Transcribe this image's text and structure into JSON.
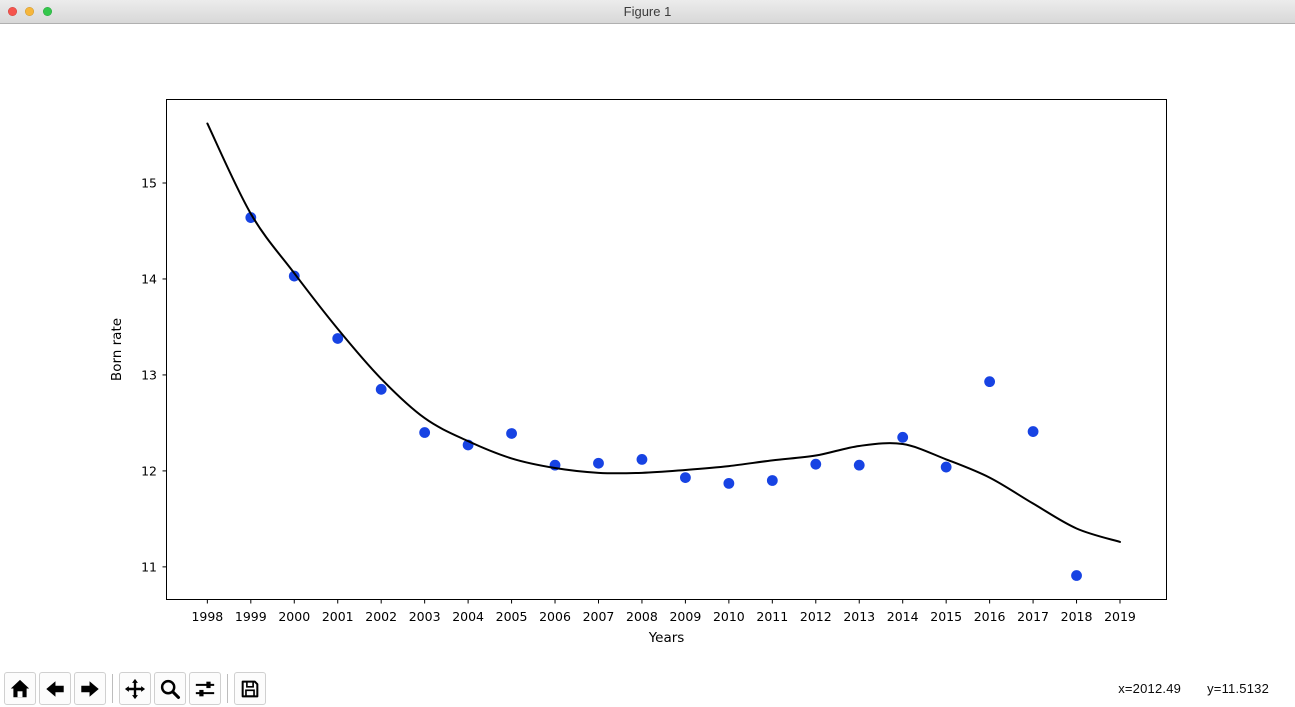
{
  "window": {
    "title": "Figure 1"
  },
  "titlebar": {
    "traffic_lights": [
      {
        "name": "close",
        "color": "#f5544d"
      },
      {
        "name": "minimize",
        "color": "#f6b63b"
      },
      {
        "name": "zoom",
        "color": "#34c74c"
      }
    ]
  },
  "chart_data": {
    "type": "scatter",
    "title": "",
    "xlabel": "Years",
    "ylabel": "Born rate",
    "xlim": [
      1997.06,
      2020.07
    ],
    "ylim": [
      10.66,
      15.87
    ],
    "grid": false,
    "legend": "none",
    "x_ticks": [
      1998,
      1999,
      2000,
      2001,
      2002,
      2003,
      2004,
      2005,
      2006,
      2007,
      2008,
      2009,
      2010,
      2011,
      2012,
      2013,
      2014,
      2015,
      2016,
      2017,
      2018,
      2019
    ],
    "y_ticks": [
      11,
      12,
      13,
      14,
      15
    ],
    "series": [
      {
        "name": "observed-born-rate",
        "type": "scatter",
        "color": "#1743e3",
        "marker": "circle",
        "x": [
          1999,
          2000,
          2001,
          2002,
          2003,
          2004,
          2005,
          2006,
          2007,
          2008,
          2009,
          2010,
          2011,
          2012,
          2013,
          2014,
          2015,
          2016,
          2017,
          2018
        ],
        "y": [
          14.64,
          14.03,
          13.38,
          12.85,
          12.4,
          12.27,
          12.39,
          12.06,
          12.08,
          12.12,
          11.93,
          11.87,
          11.9,
          12.07,
          12.06,
          12.35,
          12.04,
          12.93,
          12.41,
          10.91
        ]
      },
      {
        "name": "polynomial-fit-curve",
        "type": "line",
        "color": "#000000",
        "x": [
          1998,
          1999,
          2000,
          2001,
          2002,
          2003,
          2004,
          2005,
          2006,
          2007,
          2008,
          2009,
          2010,
          2011,
          2012,
          2013,
          2014,
          2015,
          2016,
          2017,
          2018,
          2019
        ],
        "y": [
          15.62,
          14.68,
          14.06,
          13.48,
          12.96,
          12.55,
          12.31,
          12.13,
          12.03,
          11.98,
          11.98,
          12.01,
          12.05,
          12.11,
          12.16,
          12.26,
          12.28,
          12.12,
          11.93,
          11.66,
          11.4,
          11.26
        ]
      }
    ]
  },
  "toolbar": {
    "icons": [
      "home",
      "back",
      "forward",
      "pan",
      "zoom-to-rect",
      "configure-subplots",
      "save"
    ]
  },
  "statusbar": {
    "x_readout": "x=2012.49",
    "y_readout": "y=11.5132"
  }
}
